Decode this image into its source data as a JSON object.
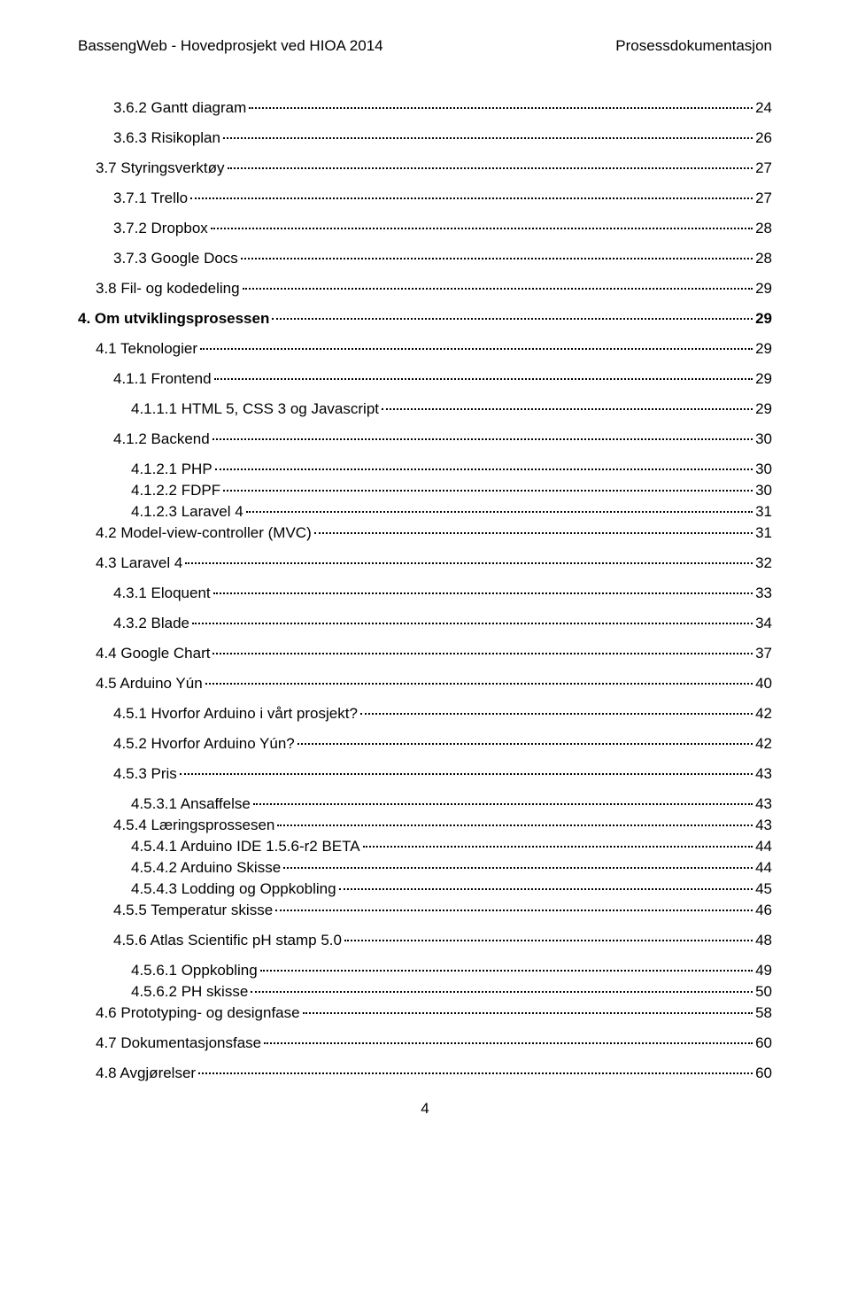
{
  "header": {
    "left": "BassengWeb - Hovedprosjekt ved HIOA 2014",
    "right": "Prosessdokumentasjon"
  },
  "toc": [
    {
      "label": "3.6.2 Gantt diagram",
      "page": "24",
      "indent": 2,
      "bold": false,
      "tight": false
    },
    {
      "label": "3.6.3 Risikoplan",
      "page": "26",
      "indent": 2,
      "bold": false,
      "tight": false
    },
    {
      "label": "3.7 Styringsverktøy",
      "page": "27",
      "indent": 1,
      "bold": false,
      "tight": false
    },
    {
      "label": "3.7.1 Trello",
      "page": "27",
      "indent": 2,
      "bold": false,
      "tight": false
    },
    {
      "label": "3.7.2 Dropbox",
      "page": "28",
      "indent": 2,
      "bold": false,
      "tight": false
    },
    {
      "label": "3.7.3 Google Docs",
      "page": "28",
      "indent": 2,
      "bold": false,
      "tight": false
    },
    {
      "label": "3.8 Fil- og kodedeling",
      "page": "29",
      "indent": 1,
      "bold": false,
      "tight": false
    },
    {
      "label": "4. Om utviklingsprosessen",
      "page": "29",
      "indent": 0,
      "bold": true,
      "tight": false
    },
    {
      "label": "4.1 Teknologier",
      "page": "29",
      "indent": 1,
      "bold": false,
      "tight": false
    },
    {
      "label": "4.1.1 Frontend",
      "page": "29",
      "indent": 2,
      "bold": false,
      "tight": false
    },
    {
      "label": "4.1.1.1 HTML 5, CSS 3 og Javascript",
      "page": "29",
      "indent": 3,
      "bold": false,
      "tight": false
    },
    {
      "label": "4.1.2 Backend",
      "page": "30",
      "indent": 2,
      "bold": false,
      "tight": false
    },
    {
      "label": "4.1.2.1 PHP",
      "page": "30",
      "indent": 3,
      "bold": false,
      "tight": true
    },
    {
      "label": "4.1.2.2 FDPF",
      "page": "30",
      "indent": 3,
      "bold": false,
      "tight": true
    },
    {
      "label": "4.1.2.3 Laravel 4",
      "page": "31",
      "indent": 3,
      "bold": false,
      "tight": true
    },
    {
      "label": "4.2 Model-view-controller (MVC)",
      "page": "31",
      "indent": 1,
      "bold": false,
      "tight": false
    },
    {
      "label": "4.3 Laravel 4",
      "page": "32",
      "indent": 1,
      "bold": false,
      "tight": false
    },
    {
      "label": "4.3.1 Eloquent",
      "page": "33",
      "indent": 2,
      "bold": false,
      "tight": false
    },
    {
      "label": "4.3.2 Blade",
      "page": "34",
      "indent": 2,
      "bold": false,
      "tight": false
    },
    {
      "label": "4.4 Google Chart",
      "page": "37",
      "indent": 1,
      "bold": false,
      "tight": false
    },
    {
      "label": "4.5 Arduino Yún",
      "page": "40",
      "indent": 1,
      "bold": false,
      "tight": false
    },
    {
      "label": "4.5.1 Hvorfor Arduino i vårt prosjekt?",
      "page": "42",
      "indent": 2,
      "bold": false,
      "tight": false
    },
    {
      "label": "4.5.2 Hvorfor Arduino Yún?",
      "page": "42",
      "indent": 2,
      "bold": false,
      "tight": false
    },
    {
      "label": "4.5.3 Pris",
      "page": "43",
      "indent": 2,
      "bold": false,
      "tight": false
    },
    {
      "label": "4.5.3.1 Ansaffelse",
      "page": "43",
      "indent": 3,
      "bold": false,
      "tight": true
    },
    {
      "label": "4.5.4 Læringsprossesen",
      "page": "43",
      "indent": 2,
      "bold": false,
      "tight": true
    },
    {
      "label": "4.5.4.1 Arduino IDE 1.5.6-r2 BETA",
      "page": "44",
      "indent": 3,
      "bold": false,
      "tight": true
    },
    {
      "label": "4.5.4.2 Arduino Skisse",
      "page": "44",
      "indent": 3,
      "bold": false,
      "tight": true
    },
    {
      "label": "4.5.4.3 Lodding og Oppkobling",
      "page": "45",
      "indent": 3,
      "bold": false,
      "tight": true
    },
    {
      "label": "4.5.5 Temperatur skisse",
      "page": "46",
      "indent": 2,
      "bold": false,
      "tight": false
    },
    {
      "label": "4.5.6 Atlas Scientific pH stamp 5.0",
      "page": "48",
      "indent": 2,
      "bold": false,
      "tight": false
    },
    {
      "label": "4.5.6.1 Oppkobling",
      "page": "49",
      "indent": 3,
      "bold": false,
      "tight": true
    },
    {
      "label": "4.5.6.2 PH skisse",
      "page": "50",
      "indent": 3,
      "bold": false,
      "tight": true
    },
    {
      "label": "4.6  Prototyping- og designfase",
      "page": "58",
      "indent": 1,
      "bold": false,
      "tight": false
    },
    {
      "label": "4.7 Dokumentasjonsfase",
      "page": "60",
      "indent": 1,
      "bold": false,
      "tight": false
    },
    {
      "label": "4.8 Avgjørelser",
      "page": "60",
      "indent": 1,
      "bold": false,
      "tight": false
    }
  ],
  "footer": {
    "page_number": "4"
  }
}
